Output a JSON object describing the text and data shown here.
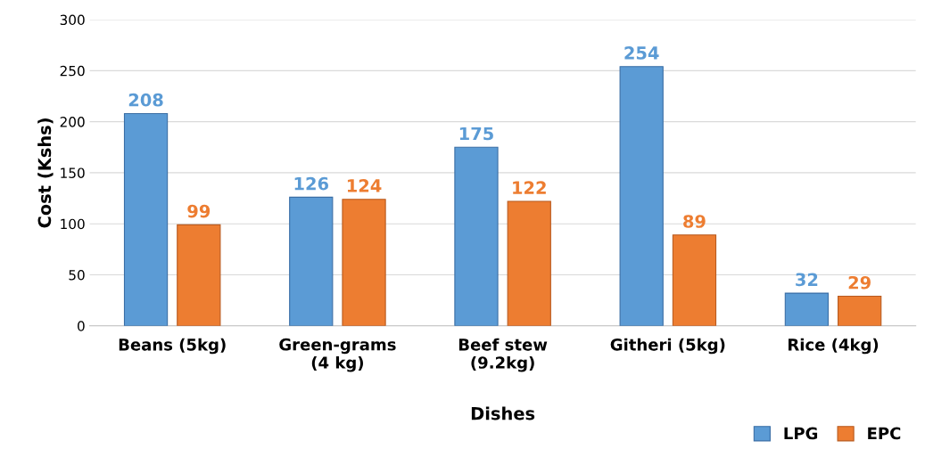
{
  "chart_data": {
    "type": "bar",
    "xlabel": "Dishes",
    "ylabel": "Cost (Kshs)",
    "categories": [
      "Beans (5kg)",
      "Green-grams\n(4 kg)",
      "Beef stew\n(9.2kg)",
      "Githeri (5kg)",
      "Rice (4kg)"
    ],
    "series": [
      {
        "name": "LPG",
        "color": "#5b9bd5",
        "values": [
          208,
          126,
          175,
          254,
          32
        ]
      },
      {
        "name": "EPC",
        "color": "#ed7d31",
        "values": [
          99,
          124,
          122,
          89,
          29
        ]
      }
    ],
    "ylim": [
      0,
      300
    ],
    "yticks": [
      0,
      50,
      100,
      150,
      200,
      250,
      300
    ],
    "grid": "y",
    "legend": "bottom right",
    "data_labels": true
  }
}
